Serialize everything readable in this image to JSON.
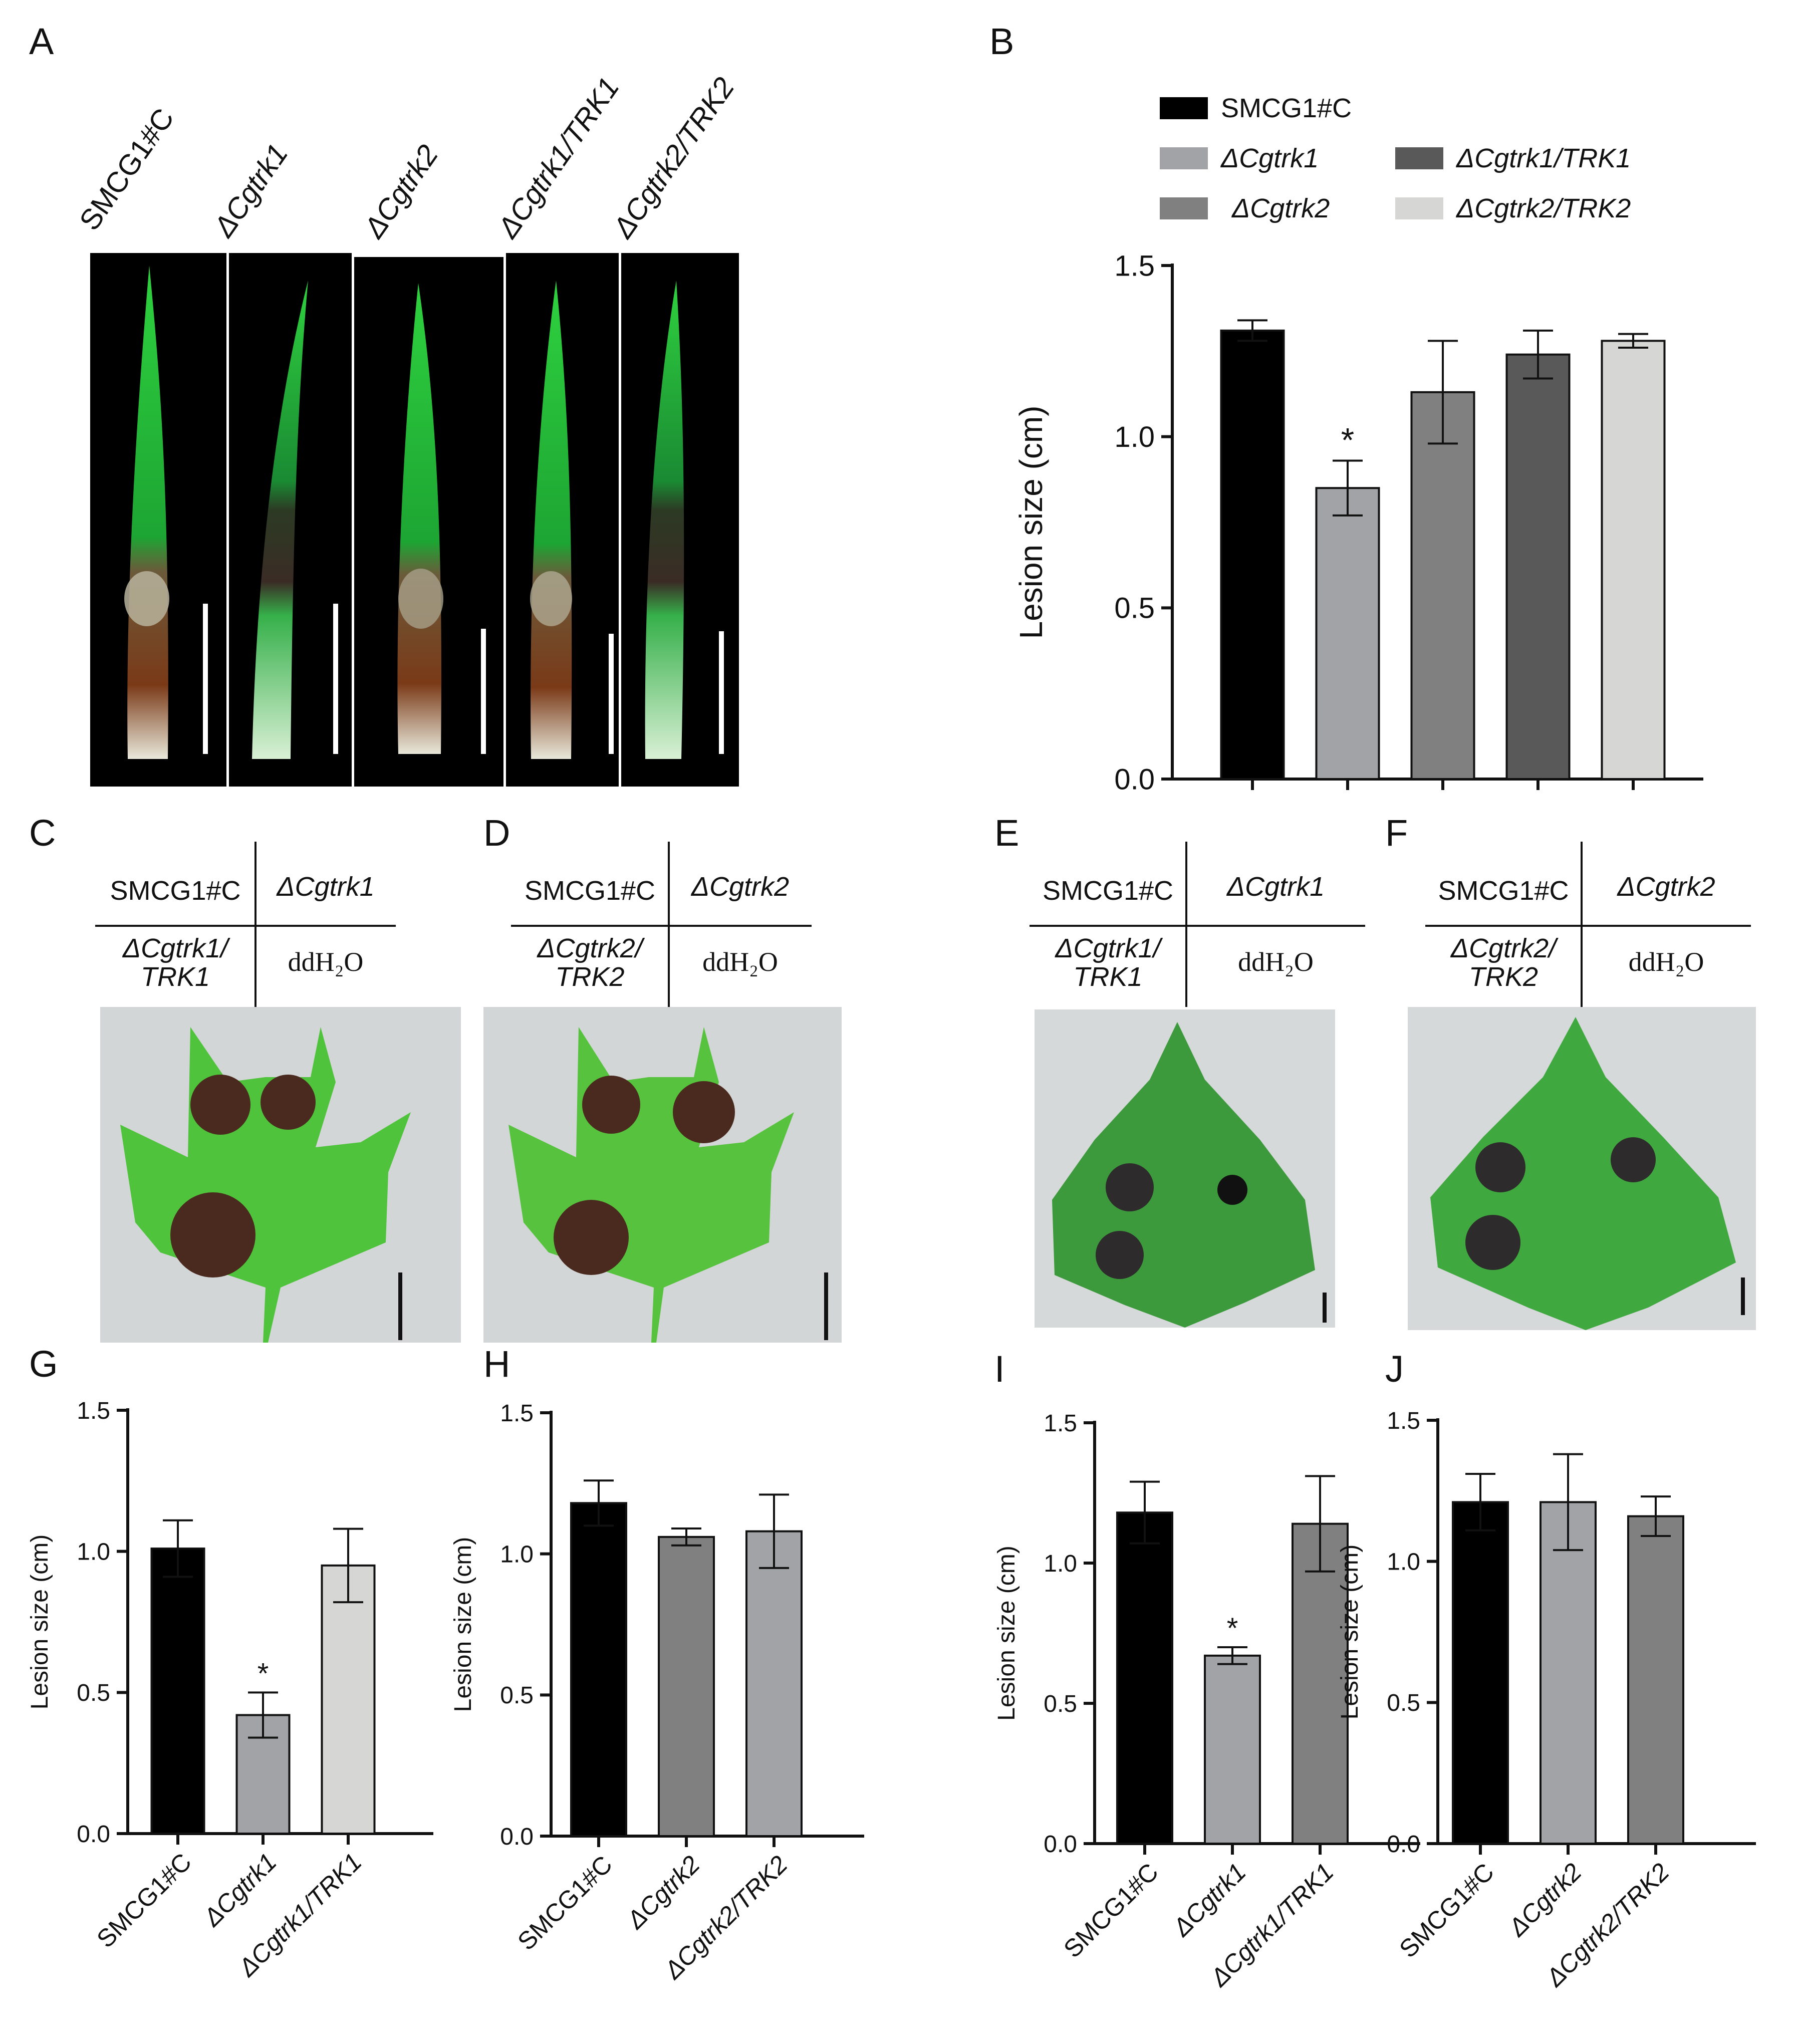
{
  "panels": {
    "A": "A",
    "B": "B",
    "C": "C",
    "D": "D",
    "E": "E",
    "F": "F",
    "G": "G",
    "H": "H",
    "I": "I",
    "J": "J"
  },
  "panelA": {
    "strain_labels": [
      "SMCG1#C",
      "ΔCgtrk1",
      "ΔCgtrk2",
      "ΔCgtrk1/TRK1",
      "ΔCgtrk2/TRK2"
    ]
  },
  "legend": {
    "items": [
      {
        "label": "SMCG1#C",
        "color": "#000000"
      },
      {
        "label": "ΔCgtrk1",
        "color": "#a2a3a7"
      },
      {
        "label": "ΔCgtrk2",
        "color": "#808080"
      },
      {
        "label": "ΔCgtrk1/TRK1",
        "color": "#595959"
      },
      {
        "label": "ΔCgtrk2/TRK2",
        "color": "#d6d7d5"
      }
    ]
  },
  "inoculation_grids": [
    {
      "tl": "SMCG1#C",
      "tr": "ΔCgtrk1",
      "bl_1": "ΔCgtrk1/",
      "bl_2": "TRK1",
      "br": "ddH₂O"
    },
    {
      "tl": "SMCG1#C",
      "tr": "ΔCgtrk2",
      "bl_1": "ΔCgtrk2/",
      "bl_2": "TRK2",
      "br": "ddH₂O"
    },
    {
      "tl": "SMCG1#C",
      "tr": "ΔCgtrk1",
      "bl_1": "ΔCgtrk1/",
      "bl_2": "TRK1",
      "br": "ddH₂O"
    },
    {
      "tl": "SMCG1#C",
      "tr": "ΔCgtrk2",
      "bl_1": "ΔCgtrk2/",
      "bl_2": "TRK2",
      "br": "ddH₂O"
    }
  ],
  "colors": {
    "leaf_green": "#3fa83a",
    "pine_green": "#27b53a",
    "lesion_brown": "#4a2a1e",
    "photo_bg_gray": "#d3d6d7"
  },
  "chart_data": [
    {
      "id": "B",
      "type": "bar",
      "categories": [
        "SMCG1#C",
        "ΔCgtrk1",
        "ΔCgtrk2",
        "ΔCgtrk1/TRK1",
        "ΔCgtrk2/TRK2"
      ],
      "show_category_labels": false,
      "values": [
        1.31,
        0.85,
        1.13,
        1.24,
        1.28
      ],
      "errors": [
        0.03,
        0.08,
        0.15,
        0.07,
        0.02
      ],
      "colors": [
        "#000000",
        "#a2a3a7",
        "#808080",
        "#595959",
        "#d6d7d5"
      ],
      "significance": [
        "",
        "*",
        "",
        "",
        ""
      ],
      "ylabel": "Lesion size  (cm)",
      "ylim": [
        0,
        1.5
      ],
      "yticks": [
        "0.0",
        "0.5",
        "1.0",
        "1.5"
      ],
      "legend": "top"
    },
    {
      "id": "G",
      "type": "bar",
      "categories": [
        "SMCG1#C",
        "ΔCgtrk1",
        "ΔCgtrk1/TRK1"
      ],
      "show_category_labels": true,
      "values": [
        1.01,
        0.42,
        0.95
      ],
      "errors": [
        0.1,
        0.08,
        0.13
      ],
      "colors": [
        "#000000",
        "#a2a3a7",
        "#d6d7d5"
      ],
      "significance": [
        "",
        "*",
        ""
      ],
      "ylabel": "Lesion size  (cm)",
      "ylim": [
        0,
        1.5
      ],
      "yticks": [
        "0.0",
        "0.5",
        "1.0",
        "1.5"
      ]
    },
    {
      "id": "H",
      "type": "bar",
      "categories": [
        "SMCG1#C",
        "ΔCgtrk2",
        "ΔCgtrk2/TRK2"
      ],
      "show_category_labels": true,
      "values": [
        1.18,
        1.06,
        1.08
      ],
      "errors": [
        0.08,
        0.03,
        0.13
      ],
      "colors": [
        "#000000",
        "#808080",
        "#a2a3a7"
      ],
      "significance": [
        "",
        "",
        ""
      ],
      "ylabel": "Lesion size  (cm)",
      "ylim": [
        0,
        1.5
      ],
      "yticks": [
        "0.0",
        "0.5",
        "1.0",
        "1.5"
      ]
    },
    {
      "id": "I",
      "type": "bar",
      "categories": [
        "SMCG1#C",
        "ΔCgtrk1",
        "ΔCgtrk1/TRK1"
      ],
      "show_category_labels": true,
      "values": [
        1.18,
        0.67,
        1.14
      ],
      "errors": [
        0.11,
        0.03,
        0.17
      ],
      "colors": [
        "#000000",
        "#a2a3a7",
        "#808080"
      ],
      "significance": [
        "",
        "*",
        ""
      ],
      "ylabel": "Lesion size  (cm)",
      "ylim": [
        0,
        1.5
      ],
      "yticks": [
        "0.0",
        "0.5",
        "1.0",
        "1.5"
      ]
    },
    {
      "id": "J",
      "type": "bar",
      "categories": [
        "SMCG1#C",
        "ΔCgtrk2",
        "ΔCgtrk2/TRK2"
      ],
      "show_category_labels": true,
      "values": [
        1.21,
        1.21,
        1.16
      ],
      "errors": [
        0.1,
        0.17,
        0.07
      ],
      "colors": [
        "#000000",
        "#a2a3a7",
        "#808080"
      ],
      "significance": [
        "",
        "",
        ""
      ],
      "ylabel": "Lesion size  (cm)",
      "ylim": [
        0,
        1.5
      ],
      "yticks": [
        "0.0",
        "0.5",
        "1.0",
        "1.5"
      ]
    }
  ]
}
